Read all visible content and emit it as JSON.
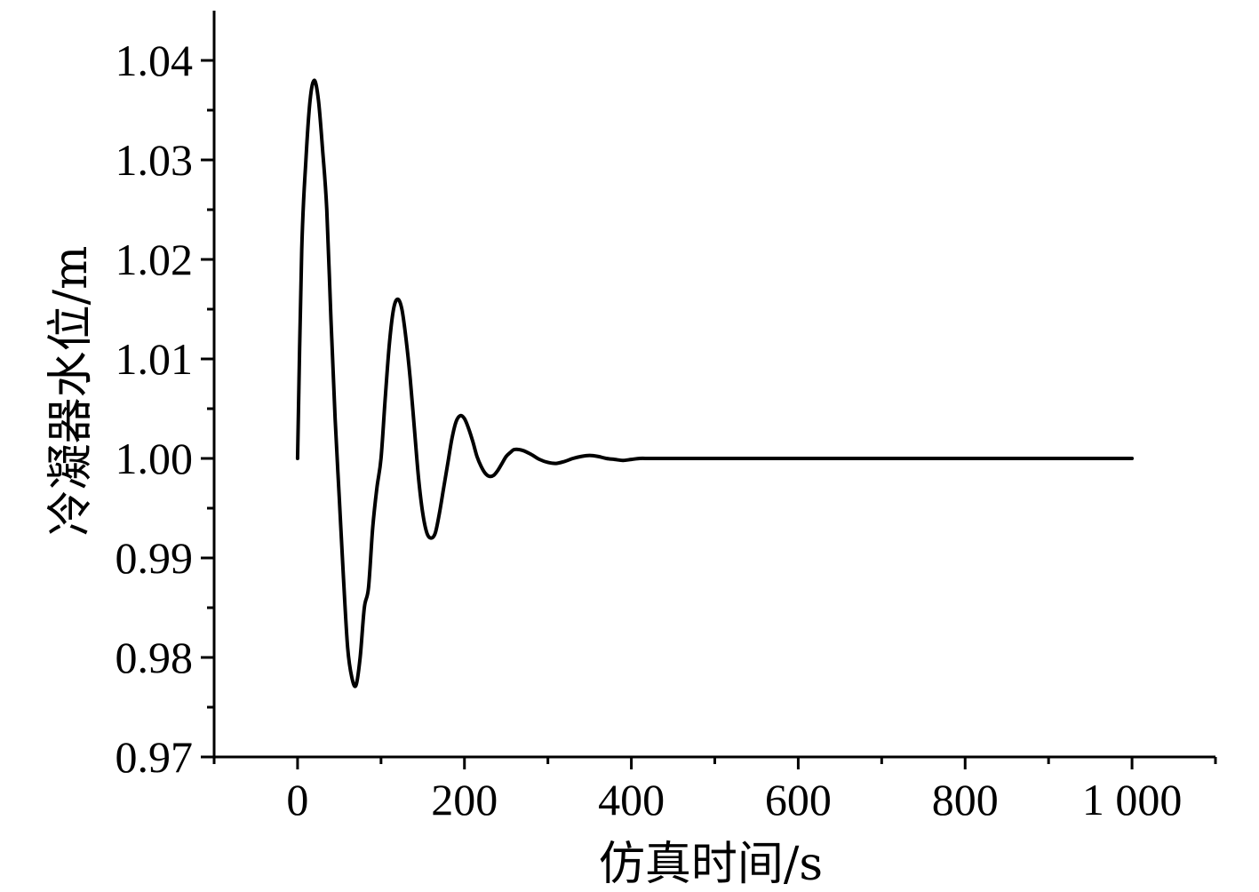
{
  "chart_data": {
    "type": "line",
    "title": "",
    "xlabel": "仿真时间/s",
    "ylabel": "冷凝器水位/m",
    "xlim": [
      -100,
      1100
    ],
    "ylim": [
      0.97,
      1.045
    ],
    "x_ticks": [
      0,
      200,
      400,
      600,
      800,
      1000
    ],
    "x_tick_labels": [
      "0",
      "200",
      "400",
      "600",
      "800",
      "1 000"
    ],
    "y_ticks": [
      0.97,
      0.98,
      0.99,
      1.0,
      1.01,
      1.02,
      1.03,
      1.04
    ],
    "y_tick_labels": [
      "0.97",
      "0.98",
      "0.99",
      "1.00",
      "1.01",
      "1.02",
      "1.03",
      "1.04"
    ],
    "grid": false,
    "legend": "none",
    "series": [
      {
        "color": "#000000",
        "x": [
          0,
          5,
          10,
          15,
          20,
          25,
          30,
          35,
          40,
          45,
          50,
          55,
          60,
          65,
          70,
          75,
          80,
          85,
          90,
          95,
          100,
          105,
          110,
          115,
          120,
          125,
          130,
          135,
          140,
          145,
          150,
          155,
          160,
          165,
          170,
          175,
          180,
          185,
          190,
          195,
          200,
          205,
          210,
          215,
          220,
          225,
          230,
          235,
          240,
          245,
          250,
          255,
          260,
          270,
          280,
          290,
          300,
          310,
          320,
          330,
          340,
          350,
          360,
          370,
          380,
          390,
          400,
          410,
          420,
          430,
          440,
          450,
          460,
          480,
          500,
          550,
          600,
          700,
          800,
          900,
          1000
        ],
        "y": [
          1.0,
          1.021,
          1.03,
          1.036,
          1.038,
          1.036,
          1.031,
          1.025,
          1.014,
          1.004,
          0.996,
          0.988,
          0.981,
          0.978,
          0.9772,
          0.98,
          0.985,
          0.987,
          0.993,
          0.997,
          1.0,
          1.006,
          1.0115,
          1.015,
          1.016,
          1.015,
          1.012,
          1.008,
          1.003,
          0.998,
          0.9945,
          0.9925,
          0.992,
          0.9925,
          0.9945,
          0.997,
          0.9995,
          1.002,
          1.0037,
          1.0043,
          1.004,
          1.003,
          1.0017,
          1.0002,
          0.9992,
          0.9985,
          0.9982,
          0.9983,
          0.9988,
          0.9995,
          1.0002,
          1.0006,
          1.0009,
          1.0008,
          1.0004,
          0.9999,
          0.9996,
          0.9995,
          0.9997,
          1.0,
          1.0002,
          1.0003,
          1.0002,
          1.0,
          0.9999,
          0.9998,
          0.9999,
          1.0,
          1.0,
          1.0,
          1.0,
          1.0,
          1.0,
          1.0,
          1.0,
          1.0,
          1.0,
          1.0,
          1.0,
          1.0,
          1.0
        ]
      }
    ]
  }
}
